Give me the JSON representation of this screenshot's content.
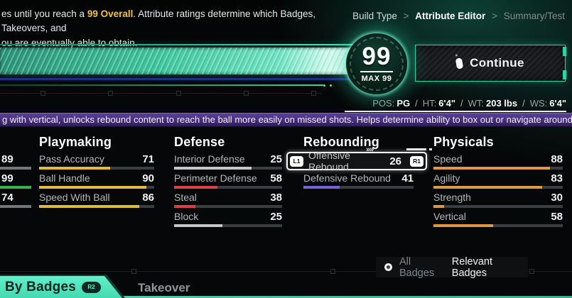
{
  "colors": {
    "accent_teal": "#3fe0af",
    "overall_yellow": "#f0c33c",
    "banner_purple": "#46307c",
    "playmaking_bar": "#e3b93e",
    "defense_bar": "#e04043",
    "rebounding_bar": "#7661d8",
    "physicals_bar": "#dd9a43"
  },
  "header": {
    "desc_before": "es until you reach a ",
    "desc_highlight": "99 Overall",
    "desc_after": ". Attribute ratings determine which Badges, Takeovers, and",
    "desc_line2": "ou are eventually able to obtain.",
    "breadcrumb": {
      "build_type": "Build Type",
      "sep1": ">",
      "attribute_editor": "Attribute Editor",
      "sep2": ">",
      "summary_test": "Summary/Test"
    }
  },
  "overall_badge": {
    "value": "99",
    "max_label": "MAX 99"
  },
  "continue_button": {
    "label": "Continue",
    "icon": "mouse-left-click-icon"
  },
  "player_info": {
    "pos_label": "POS:",
    "pos_value": "PG",
    "ht_label": "HT:",
    "ht_value": "6'4\"",
    "wt_label": "WT:",
    "wt_value": "203 lbs",
    "ws_label": "WS:",
    "ws_value": "6'4\"",
    "slash": "/"
  },
  "banner": {
    "text": "g with vertical, unlocks rebound content to reach the ball more easily on missed shots. Helps determine ability to box out or navigate around box outs."
  },
  "controls": {
    "l1_label": "L1",
    "r1_label": "R1",
    "r2_label": "R2",
    "chevrons": "»»"
  },
  "attributes": {
    "cut_rows": [
      {
        "value": "89",
        "fill_pct": 100,
        "fill_color": "#70767a"
      },
      {
        "value": "99",
        "fill_pct": 100,
        "fill_color": "#36b44a"
      },
      {
        "value": "74",
        "fill_pct": 100,
        "fill_color": "#70767a"
      }
    ],
    "columns": [
      {
        "name": "Playmaking",
        "rows": [
          {
            "label": "Pass Accuracy",
            "value": "71",
            "fill_pct": 62,
            "fill_color": "#e3b93e"
          },
          {
            "label": "Ball Handle",
            "value": "90",
            "fill_pct": 93,
            "fill_color": "#e3b93e"
          },
          {
            "label": "Speed With Ball",
            "value": "86",
            "fill_pct": 87,
            "fill_color": "#e3b93e"
          }
        ]
      },
      {
        "name": "Defense",
        "rows": [
          {
            "label": "Interior Defense",
            "value": "25",
            "fill_pct": 72,
            "fill_color": "#c2c7cb"
          },
          {
            "label": "Perimeter Defense",
            "value": "58",
            "fill_pct": 40,
            "fill_color": "#e04043"
          },
          {
            "label": "Steal",
            "value": "38",
            "fill_pct": 20,
            "fill_color": "#e04043"
          },
          {
            "label": "Block",
            "value": "25",
            "fill_pct": 45,
            "fill_color": "#c2c7cb"
          }
        ]
      },
      {
        "name": "Rebounding",
        "selected_row": {
          "label": "Offensive Rebound",
          "value": "26"
        },
        "rows": [
          {
            "label": "Defensive Rebound",
            "value": "41",
            "fill_pct": 33,
            "fill_color": "#7661d8"
          }
        ]
      },
      {
        "name": "Physicals",
        "rows": [
          {
            "label": "Speed",
            "value": "88",
            "fill_pct": 90,
            "fill_color": "#dd9a43"
          },
          {
            "label": "Agility",
            "value": "83",
            "fill_pct": 84,
            "fill_color": "#dd9a43"
          },
          {
            "label": "Strength",
            "value": "30",
            "fill_pct": 8,
            "fill_color": "#dd9a43"
          },
          {
            "label": "Vertical",
            "value": "58",
            "fill_pct": 46,
            "fill_color": "#dd9a43"
          }
        ]
      }
    ]
  },
  "footer": {
    "active_tab": "By Badges",
    "takeover_tab": "Takeover",
    "all_badges": "All Badges",
    "relevant_badges": "Relevant Badges"
  }
}
